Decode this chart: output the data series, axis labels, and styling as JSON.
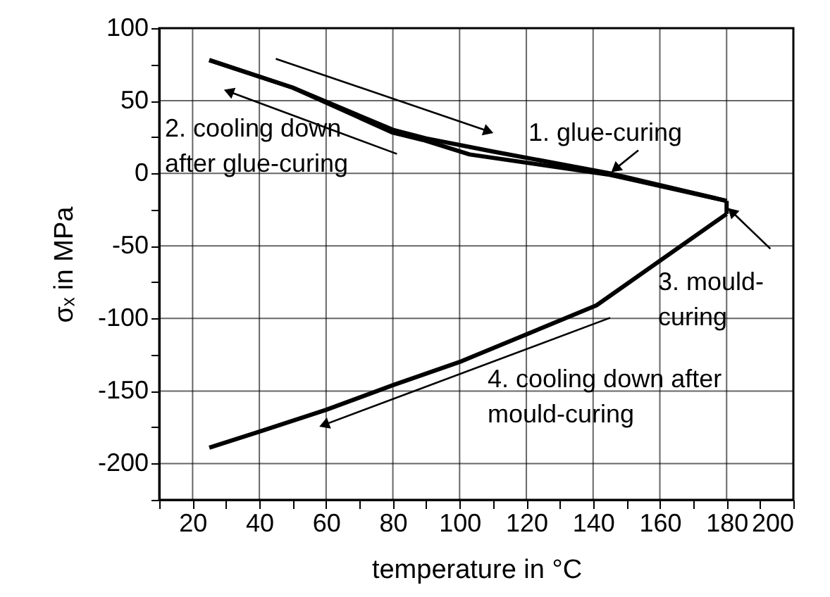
{
  "chart_data": {
    "type": "line",
    "xlabel": "temperature in °C",
    "ylabel": "σₓ in MPa",
    "xlim": [
      10,
      200
    ],
    "ylim": [
      -225,
      100
    ],
    "xticks": [
      {
        "value": 10,
        "label": null
      },
      20,
      {
        "value": 30,
        "label": null
      },
      40,
      {
        "value": 50,
        "label": null
      },
      60,
      {
        "value": 70,
        "label": null
      },
      80,
      {
        "value": 90,
        "label": null
      },
      100,
      {
        "value": 110,
        "label": null
      },
      120,
      {
        "value": 130,
        "label": null
      },
      140,
      {
        "value": 150,
        "label": null
      },
      160,
      {
        "value": 170,
        "label": null
      },
      180,
      {
        "value": 190,
        "label": null
      },
      200
    ],
    "yticks": [
      100,
      {
        "value": 75,
        "label": null
      },
      50,
      {
        "value": 25,
        "label": null
      },
      0,
      {
        "value": -25,
        "label": null
      },
      -50,
      {
        "value": -75,
        "label": null
      },
      -100,
      {
        "value": -125,
        "label": null
      },
      -150,
      {
        "value": -175,
        "label": null
      },
      -200,
      {
        "value": -225,
        "label": null
      }
    ],
    "grid": true,
    "line_style": "solid",
    "marker": "none",
    "series": [
      {
        "color": "#000000",
        "x": [
          25,
          50,
          80,
          90,
          110,
          145,
          180
        ],
        "values": [
          78,
          59,
          30,
          24,
          15,
          0,
          -19
        ]
      },
      {
        "color": "#000000",
        "x": [
          180,
          145,
          103,
          89,
          80,
          50,
          25
        ],
        "values": [
          -19,
          -1,
          13,
          23,
          28,
          59,
          78
        ]
      },
      {
        "color": "#000000",
        "x": [
          180,
          180
        ],
        "values": [
          -19,
          -28
        ]
      },
      {
        "color": "#000000",
        "x": [
          180,
          141,
          100,
          80,
          60,
          40,
          25
        ],
        "values": [
          -28,
          -91,
          -130,
          -146,
          -163,
          -178,
          -189
        ]
      }
    ],
    "annotations": [
      {
        "text": "1. glue-curing",
        "x": 145,
        "y": 0
      },
      "2. cooling down\nafter glue-curing",
      {
        "text": "3. mould-\ncuring",
        "x": 180,
        "y": -23
      },
      "4. cooling down after\nmould-curing"
    ]
  }
}
